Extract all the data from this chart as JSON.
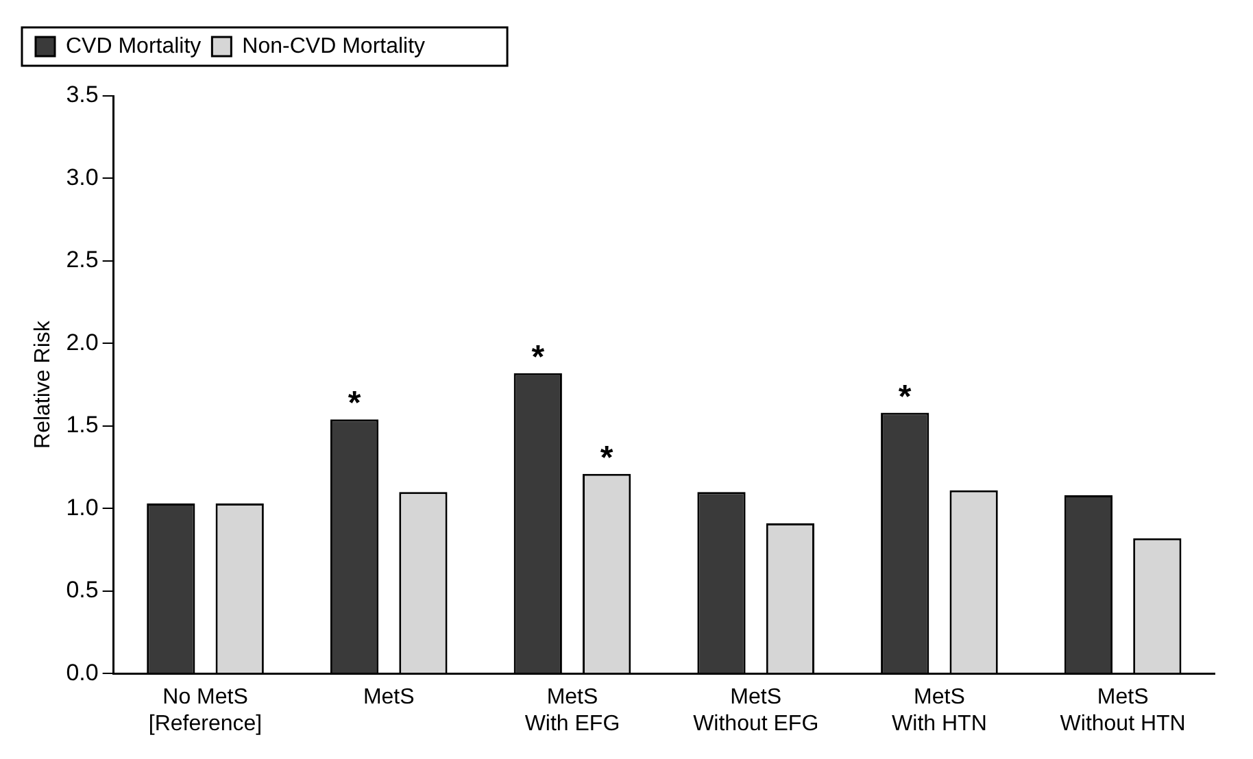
{
  "chart_data": {
    "type": "bar",
    "ylabel": "Relative Risk",
    "categories": [
      "No MetS\n[Reference]",
      "MetS",
      "MetS\nWith EFG",
      "MetS\nWithout EFG",
      "MetS\nWith HTN",
      "MetS\nWithout HTN"
    ],
    "series": [
      {
        "name": "CVD Mortality",
        "color": "#3a3a3a",
        "values": [
          1.03,
          1.54,
          1.82,
          1.1,
          1.58,
          1.08
        ],
        "value_labels": [
          null,
          "*",
          "*",
          null,
          "*",
          null
        ]
      },
      {
        "name": "Non-CVD Mortality",
        "color": "#d6d6d6",
        "values": [
          1.03,
          1.1,
          1.21,
          0.91,
          1.11,
          0.82
        ],
        "value_labels": [
          null,
          null,
          "*",
          null,
          null,
          null
        ]
      }
    ],
    "ylim": [
      0,
      3.5
    ],
    "yticks": [
      {
        "value": 0,
        "label": "0.0"
      },
      {
        "value": 0.5,
        "label": "0.5"
      },
      {
        "value": 1,
        "label": "1.0"
      },
      {
        "value": 1.5,
        "label": "1.5"
      },
      {
        "value": 2,
        "label": "2.0"
      },
      {
        "value": 2.5,
        "label": "2.5"
      },
      {
        "value": 3,
        "label": "3.0"
      },
      {
        "value": 3.5,
        "label": "3.5"
      }
    ],
    "grid": false,
    "legend": "top left"
  }
}
